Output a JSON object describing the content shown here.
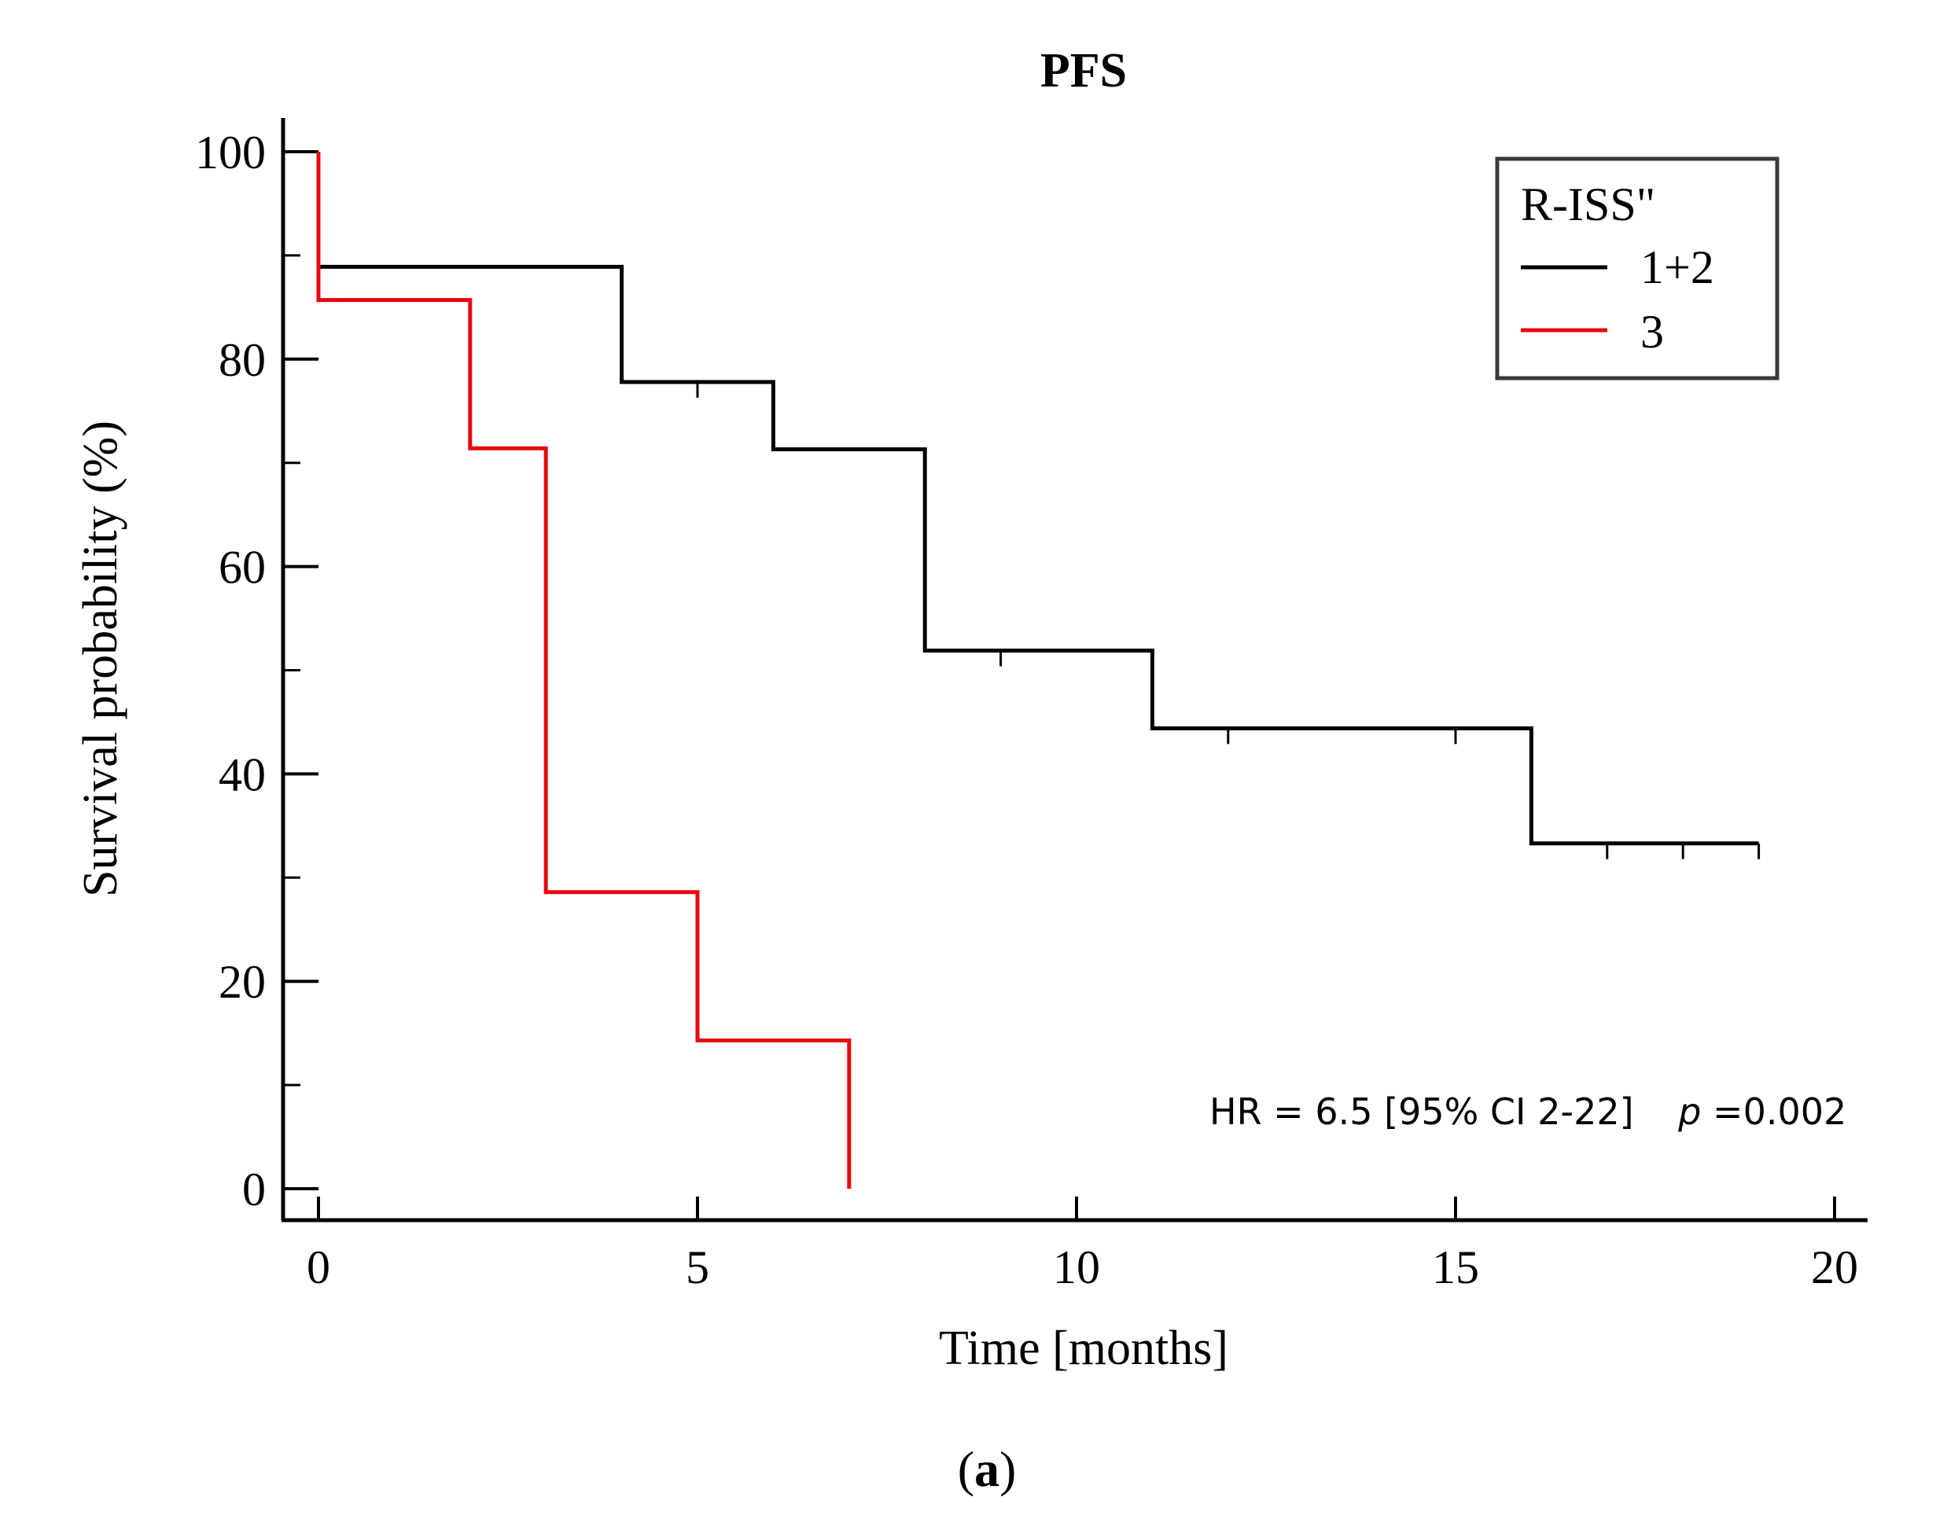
{
  "chart_data": {
    "type": "line",
    "subtype": "kaplan-meier step",
    "title": "PFS",
    "xlabel": "Time [months]",
    "ylabel": "Survival probability (%)",
    "xlim": [
      0,
      20
    ],
    "ylim": [
      0,
      100
    ],
    "x_ticks": [
      0,
      5,
      10,
      15,
      20
    ],
    "y_ticks": [
      0,
      20,
      40,
      60,
      80,
      100
    ],
    "legend": {
      "title": "R-ISS\"",
      "position": "top-right"
    },
    "series": [
      {
        "name": "1+2",
        "color": "#000000",
        "steps": [
          [
            0,
            100
          ],
          [
            0,
            88.9
          ],
          [
            4,
            88.9
          ],
          [
            4,
            77.8
          ],
          [
            6,
            77.8
          ],
          [
            6,
            71.3
          ],
          [
            8,
            71.3
          ],
          [
            8,
            51.9
          ],
          [
            11,
            51.9
          ],
          [
            11,
            44.4
          ],
          [
            16,
            44.4
          ],
          [
            16,
            33.3
          ],
          [
            19,
            33.3
          ]
        ],
        "censored": [
          [
            5,
            77.8
          ],
          [
            9,
            51.9
          ],
          [
            12,
            44.4
          ],
          [
            15,
            44.4
          ],
          [
            17,
            33.3
          ],
          [
            18,
            33.3
          ],
          [
            19,
            33.3
          ]
        ]
      },
      {
        "name": "3",
        "color": "#e8080e",
        "steps": [
          [
            0,
            100
          ],
          [
            0,
            85.7
          ],
          [
            2,
            85.7
          ],
          [
            2,
            71.4
          ],
          [
            3,
            71.4
          ],
          [
            3,
            28.6
          ],
          [
            5,
            28.6
          ],
          [
            5,
            14.3
          ],
          [
            7,
            14.3
          ],
          [
            7,
            0
          ]
        ],
        "censored": []
      }
    ],
    "annotation": {
      "hr_text": "HR = 6.5 [95% CI 2-22]",
      "p_label": "p",
      "p_value": "=0.002"
    },
    "panel_label": "a"
  }
}
